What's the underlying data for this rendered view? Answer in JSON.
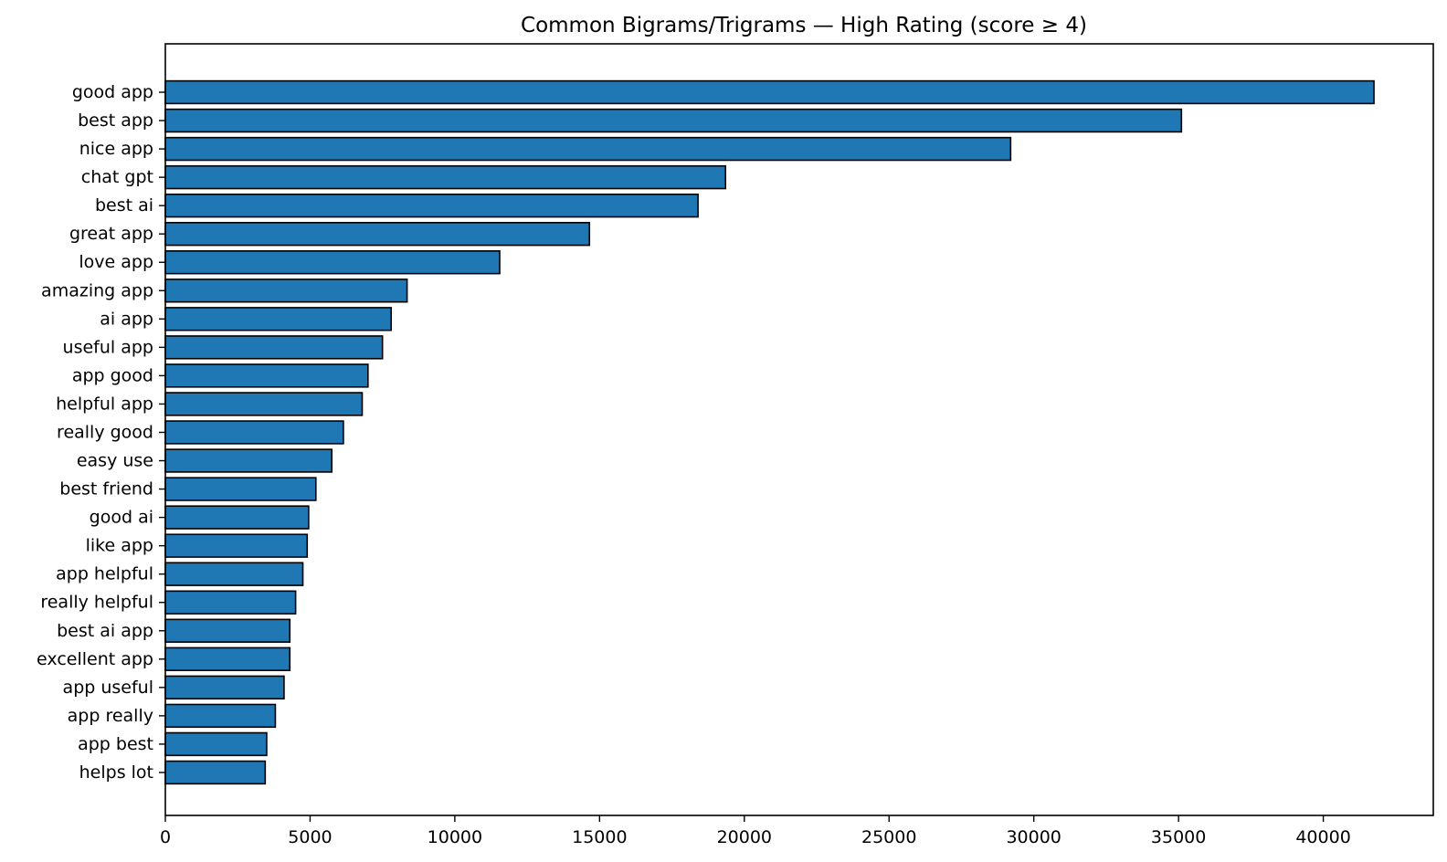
{
  "chart_data": {
    "type": "bar",
    "orientation": "horizontal",
    "title": "Common Bigrams/Trigrams — High Rating (score ≥ 4)",
    "xlabel": "",
    "ylabel": "",
    "xlim": [
      0,
      43800
    ],
    "x_ticks": [
      0,
      5000,
      10000,
      15000,
      20000,
      25000,
      30000,
      35000,
      40000
    ],
    "grid": false,
    "legend": "none",
    "bar_color": "#1f77b4",
    "edge_color": "#000000",
    "categories": [
      "good app",
      "best app",
      "nice app",
      "chat gpt",
      "best ai",
      "great app",
      "love app",
      "amazing app",
      "ai app",
      "useful app",
      "app good",
      "helpful app",
      "really good",
      "easy use",
      "best friend",
      "good ai",
      "like app",
      "app helpful",
      "really helpful",
      "best ai app",
      "excellent app",
      "app useful",
      "app really",
      "app best",
      "helps lot"
    ],
    "values": [
      41750,
      35100,
      29200,
      19350,
      18400,
      14650,
      11550,
      8350,
      7800,
      7500,
      7000,
      6800,
      6150,
      5750,
      5200,
      4950,
      4900,
      4750,
      4500,
      4300,
      4300,
      4100,
      3800,
      3500,
      3450
    ]
  }
}
